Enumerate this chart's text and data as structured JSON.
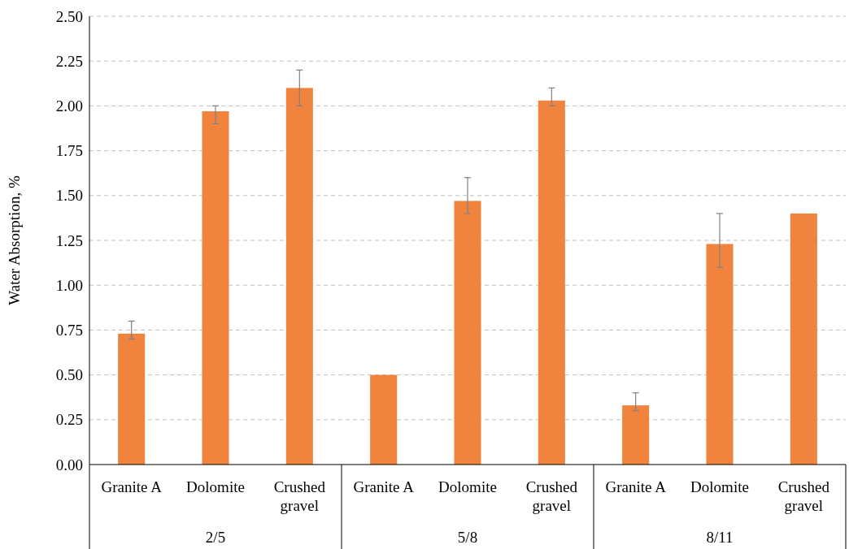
{
  "chart_data": {
    "type": "bar",
    "ylabel": "Water Absorption, %",
    "categories": [
      "Granite A",
      "Dolomite",
      "Crushed gravel",
      "Granite A",
      "Dolomite",
      "Crushed gravel",
      "Granite A",
      "Dolomite",
      "Crushed gravel"
    ],
    "values": [
      0.73,
      1.97,
      2.1,
      0.5,
      1.47,
      2.03,
      0.33,
      1.23,
      1.4
    ],
    "errors": [
      [
        0.7,
        0.8
      ],
      [
        1.9,
        2.0
      ],
      [
        2.0,
        2.2
      ],
      null,
      [
        1.4,
        1.6
      ],
      [
        2.0,
        2.1
      ],
      [
        0.3,
        0.4
      ],
      [
        1.1,
        1.4
      ],
      null
    ],
    "color": "#f0843f",
    "annotations": [
      "2/5",
      "5/8",
      "8/11"
    ],
    "ylim": [
      0,
      2.5
    ],
    "yticks": [
      {
        "value": 0,
        "label": "0.00"
      },
      {
        "value": 0.25,
        "label": "0.25"
      },
      {
        "value": 0.5,
        "label": "0.50"
      },
      {
        "value": 0.75,
        "label": "0.75"
      },
      {
        "value": 1,
        "label": "1.00"
      },
      {
        "value": 1.25,
        "label": "1.25"
      },
      {
        "value": 1.5,
        "label": "1.50"
      },
      {
        "value": 1.75,
        "label": "1.75"
      },
      {
        "value": 2,
        "label": "2.00"
      },
      {
        "value": 2.25,
        "label": "2.25"
      },
      {
        "value": 2.5,
        "label": "2.50"
      }
    ],
    "grid": "y"
  }
}
